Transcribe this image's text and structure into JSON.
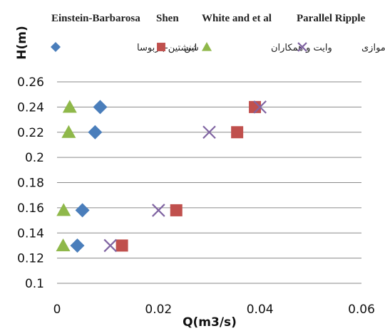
{
  "chart_data": {
    "type": "scatter",
    "title": "",
    "xlabel": "Q(m3/s)",
    "ylabel": "H(m)",
    "xlim": [
      0,
      0.06
    ],
    "ylim": [
      0.1,
      0.26
    ],
    "x_ticks": [
      "0",
      "0.02",
      "0.04",
      "0.06"
    ],
    "y_ticks": [
      "0.1",
      "0.12",
      "0.14",
      "0.16",
      "0.18",
      "0.2",
      "0.22",
      "0.24",
      "0.26"
    ],
    "grid": "horizontal",
    "legend_position": "top",
    "series": [
      {
        "name": "Einstein-Barbarosa",
        "name_fa": "اینشتین-باربوسا",
        "marker": "diamond",
        "color": "#4a7ebb",
        "points": [
          [
            0.0085,
            0.24
          ],
          [
            0.0075,
            0.22
          ],
          [
            0.005,
            0.158
          ],
          [
            0.004,
            0.13
          ]
        ]
      },
      {
        "name": "Shen",
        "name_fa": "شن",
        "marker": "square",
        "color": "#c0504d",
        "points": [
          [
            0.039,
            0.24
          ],
          [
            0.0355,
            0.22
          ],
          [
            0.0235,
            0.158
          ],
          [
            0.0128,
            0.13
          ]
        ]
      },
      {
        "name": "White and et al",
        "name_fa": "وایت و همکاران",
        "marker": "triangle",
        "color": "#8fb84a",
        "points": [
          [
            0.0025,
            0.24
          ],
          [
            0.0023,
            0.22
          ],
          [
            0.0013,
            0.158
          ],
          [
            0.0012,
            0.13
          ]
        ]
      },
      {
        "name": "Parallel Ripple",
        "name_fa": "ریپل موازی",
        "marker": "x",
        "color": "#8064a2",
        "points": [
          [
            0.04,
            0.24
          ],
          [
            0.03,
            0.22
          ],
          [
            0.02,
            0.158
          ],
          [
            0.0105,
            0.13
          ]
        ]
      }
    ]
  }
}
